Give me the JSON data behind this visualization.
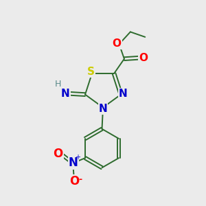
{
  "bg_color": "#ebebeb",
  "atom_colors": {
    "C": "#000000",
    "N": "#0000cc",
    "O": "#ff0000",
    "S": "#cccc00",
    "H": "#5a8a8a"
  },
  "bond_color": "#2d6b2d",
  "bond_lw": 1.4,
  "font_size": 10
}
